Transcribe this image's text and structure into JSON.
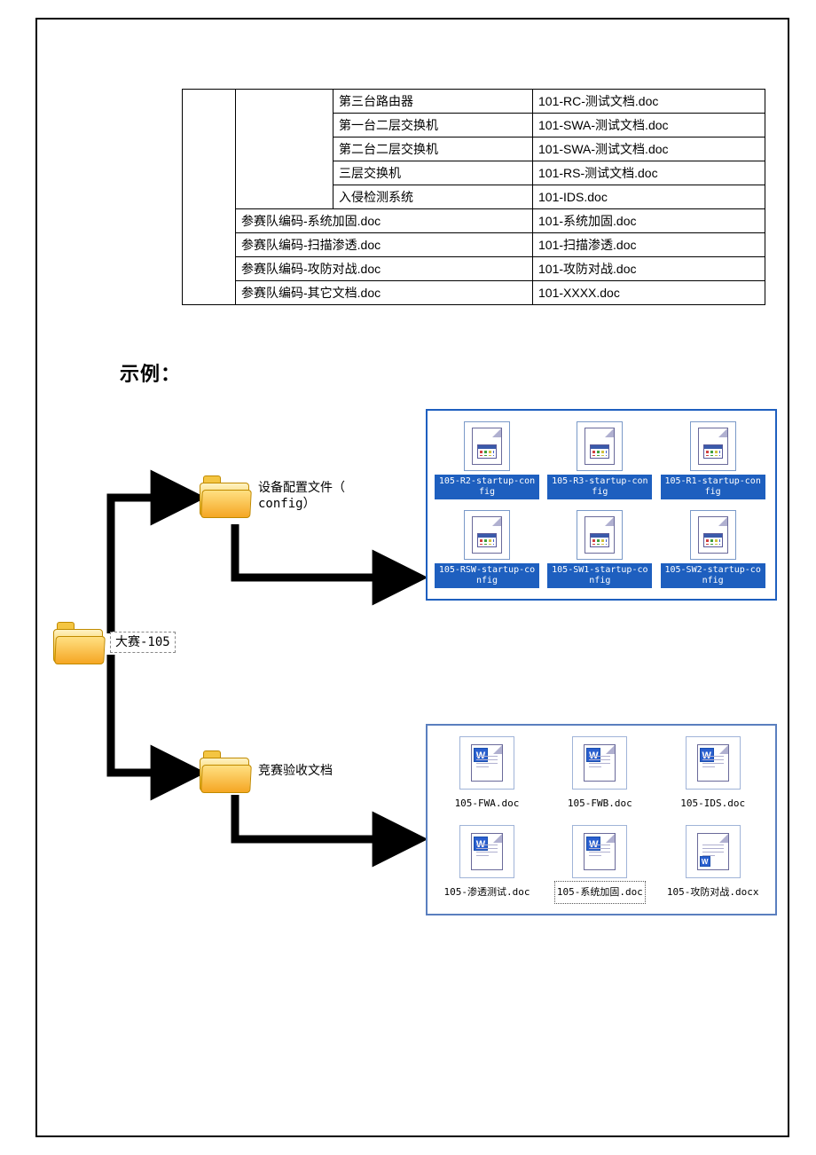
{
  "table": {
    "split_rows": [
      {
        "c": "第三台路由器",
        "d": "101-RC-测试文档.doc"
      },
      {
        "c": "第一台二层交换机",
        "d": "101-SWA-测试文档.doc"
      },
      {
        "c": "第二台二层交换机",
        "d": "101-SWA-测试文档.doc"
      },
      {
        "c": "三层交换机",
        "d": "101-RS-测试文档.doc"
      },
      {
        "c": "入侵检测系统",
        "d": "101-IDS.doc"
      }
    ],
    "full_rows": [
      {
        "c": "参赛队编码-系统加固.doc",
        "d": "101-系统加固.doc"
      },
      {
        "c": "参赛队编码-扫描渗透.doc",
        "d": "101-扫描渗透.doc"
      },
      {
        "c": "参赛队编码-攻防对战.doc",
        "d": "101-攻防对战.doc"
      },
      {
        "c": "参赛队编码-其它文档.doc",
        "d": "101-XXXX.doc"
      }
    ]
  },
  "heading": "示例：",
  "folders": {
    "root": "大赛-105",
    "sub1": "设备配置文件（\nconfig）",
    "sub2": "竞赛验收文档"
  },
  "config_files": [
    "105-R2-startup-config",
    "105-R3-startup-config",
    "105-R1-startup-config",
    "105-RSW-startup-config",
    "105-SW1-startup-config",
    "105-SW2-startup-config"
  ],
  "doc_files": [
    {
      "name": "105-FWA.doc",
      "type": "doc"
    },
    {
      "name": "105-FWB.doc",
      "type": "doc"
    },
    {
      "name": "105-IDS.doc",
      "type": "doc"
    },
    {
      "name": "105-渗透测试.doc",
      "type": "doc"
    },
    {
      "name": "105-系统加固.doc",
      "type": "doc",
      "selected": true
    },
    {
      "name": "105-攻防对战.docx",
      "type": "docx"
    }
  ],
  "colors": {
    "border": "#000000",
    "folder_fill": "#f5a623",
    "select_blue": "#1e5fbf",
    "word_blue": "#2a5fcf"
  }
}
